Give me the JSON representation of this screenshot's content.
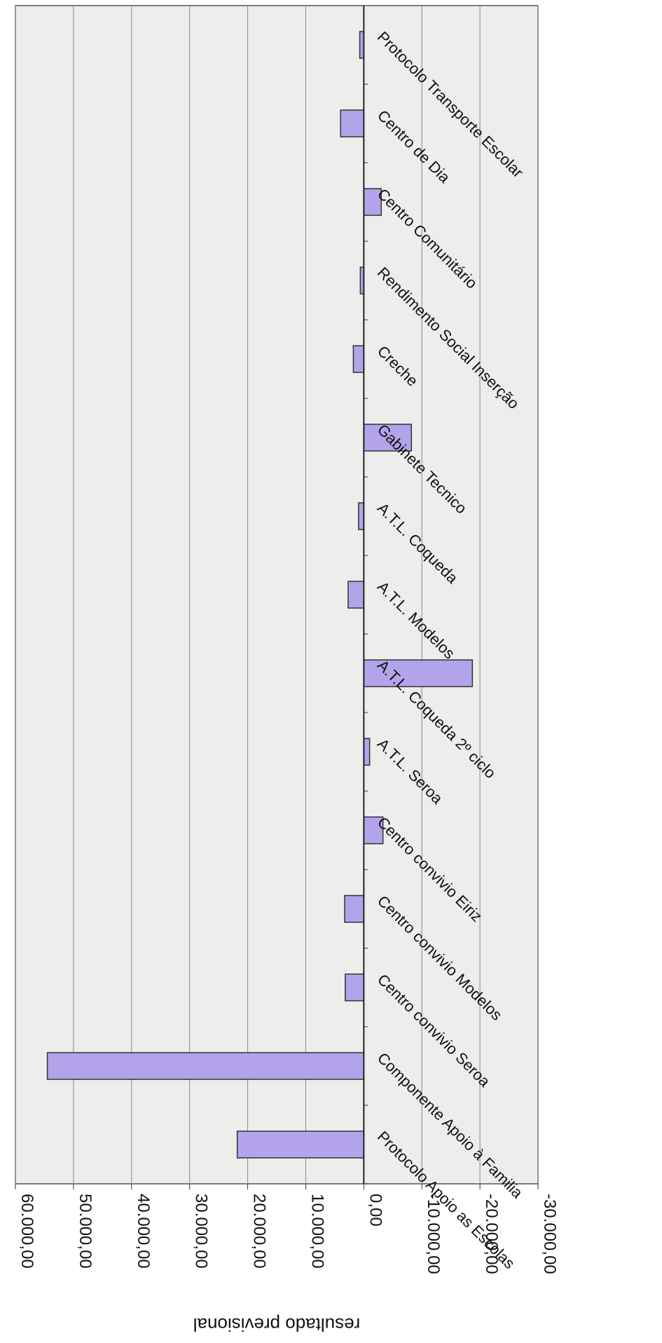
{
  "chart_data": {
    "type": "bar",
    "orientation": "horizontal",
    "image_rotation": "rotated 90 degrees clockwise",
    "ylabel": "resultado previsional",
    "xlabel": "",
    "title": "",
    "ylim": [
      -30000,
      60000
    ],
    "tick_values": [
      60000,
      50000,
      40000,
      30000,
      20000,
      10000,
      0,
      -10000,
      -20000,
      -30000
    ],
    "tick_labels": [
      "60.000,00",
      "50.000,00",
      "40.000,00",
      "30.000,00",
      "20.000,00",
      "10.000,00",
      "0,00",
      "-10.000,00",
      "-20.000,00",
      "-30.000,00"
    ],
    "categories": [
      "Protocolo Apoio as Escolas",
      "Componente Apoio à Familia",
      "Centro convivio Seroa",
      "Centro convivio Modelos",
      "Centro convivio Eiriz",
      "A.T.L. Seroa",
      "A.T.L. Coqueda 2º ciclo",
      "A.T.L. Modelos",
      "A.T.L. Coqueda",
      "Gabinete Tecnico",
      "Creche",
      "Rendimento Social Inserção",
      "Centro Comunitário",
      "Centro de Dia",
      "Protocolo Transporte Escolar"
    ],
    "values": [
      21800,
      54500,
      3200,
      3300,
      -3300,
      -1000,
      -18700,
      2700,
      900,
      -8200,
      1800,
      600,
      -3000,
      4000,
      700
    ],
    "bar_color": "#b3a3ea",
    "bar_edge_color": "#333333",
    "plot_background": "#eceeeb",
    "gridline_color": "#888888",
    "grid": true,
    "legend": "none"
  }
}
